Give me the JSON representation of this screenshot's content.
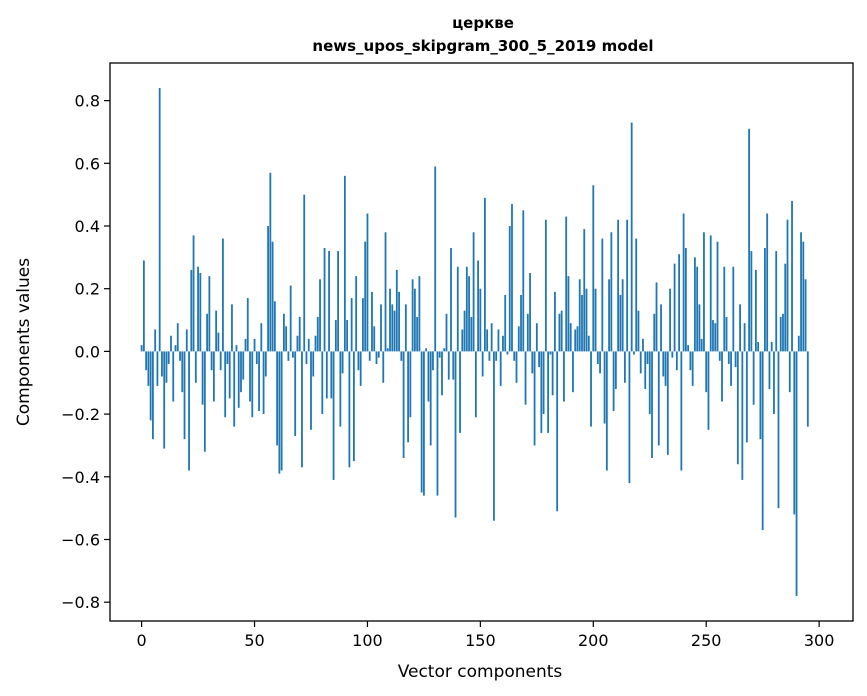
{
  "chart_data": {
    "type": "bar",
    "title": [
      "церкве",
      "news_upos_skipgram_300_5_2019 model"
    ],
    "xlabel": "Vector components",
    "ylabel": "Components values",
    "xlim": [
      -14,
      315
    ],
    "ylim": [
      -0.86,
      0.92
    ],
    "xticks": [
      0,
      50,
      100,
      150,
      200,
      250,
      300
    ],
    "xtick_labels": [
      "0",
      "50",
      "100",
      "150",
      "200",
      "250",
      "300"
    ],
    "yticks": [
      -0.8,
      -0.6,
      -0.4,
      -0.2,
      0.0,
      0.2,
      0.4,
      0.6,
      0.8
    ],
    "ytick_labels": [
      "−0.8",
      "−0.6",
      "−0.4",
      "−0.2",
      "0.0",
      "0.2",
      "0.4",
      "0.6",
      "0.8"
    ],
    "grid": false,
    "color": "#1f77b4",
    "x": "0..299",
    "values": [
      0.02,
      0.29,
      -0.06,
      -0.11,
      -0.22,
      -0.28,
      0.07,
      -0.11,
      0.84,
      -0.08,
      -0.31,
      -0.1,
      -0.04,
      0.05,
      -0.16,
      0.02,
      0.09,
      -0.03,
      -0.13,
      -0.28,
      0.07,
      -0.38,
      0.26,
      0.37,
      -0.1,
      0.27,
      0.25,
      -0.17,
      -0.32,
      0.12,
      0.24,
      -0.06,
      -0.16,
      0.13,
      0.06,
      -0.06,
      0.36,
      -0.21,
      -0.04,
      -0.15,
      0.15,
      -0.24,
      0.02,
      -0.18,
      -0.13,
      -0.09,
      0.04,
      0.17,
      -0.16,
      -0.21,
      0.04,
      -0.04,
      -0.19,
      0.09,
      -0.2,
      -0.08,
      0.4,
      0.57,
      0.35,
      0.16,
      -0.3,
      -0.39,
      -0.38,
      0.12,
      0.08,
      -0.03,
      0.21,
      -0.02,
      -0.27,
      0.05,
      0.11,
      -0.37,
      0.5,
      -0.04,
      0.04,
      -0.25,
      -0.08,
      0.05,
      0.11,
      0.23,
      -0.2,
      0.33,
      -0.15,
      0.32,
      -0.15,
      -0.41,
      0.1,
      0.32,
      -0.24,
      -0.07,
      0.56,
      0.1,
      -0.37,
      0.17,
      -0.35,
      0.24,
      -0.06,
      -0.11,
      0.17,
      0.35,
      0.44,
      -0.03,
      0.19,
      0.08,
      -0.04,
      -0.02,
      0.15,
      -0.1,
      0.38,
      0.01,
      0.2,
      0.15,
      0.13,
      0.26,
      0.19,
      -0.03,
      -0.34,
      0.15,
      -0.29,
      -0.21,
      0.23,
      0.2,
      0.11,
      0.24,
      -0.45,
      -0.46,
      0.01,
      -0.16,
      -0.3,
      -0.06,
      0.59,
      -0.46,
      -0.02,
      -0.14,
      0.01,
      0.12,
      -0.09,
      0.33,
      -0.09,
      -0.53,
      0.27,
      -0.26,
      0.07,
      0.13,
      0.27,
      0.24,
      0.11,
      0.38,
      -0.21,
      0.29,
      0.2,
      -0.08,
      0.49,
      0.07,
      -0.03,
      0.09,
      -0.54,
      -0.03,
      0.07,
      -0.11,
      0.05,
      0.18,
      -0.01,
      0.4,
      0.47,
      -0.03,
      -0.1,
      0.08,
      0.18,
      0.45,
      -0.17,
      0.12,
      0.25,
      -0.07,
      -0.3,
      0.09,
      -0.05,
      -0.26,
      -0.2,
      0.42,
      -0.26,
      -0.01,
      -0.14,
      0.19,
      -0.51,
      0.12,
      0.13,
      -0.16,
      0.43,
      0.24,
      0.09,
      -0.13,
      0.07,
      0.08,
      0.23,
      0.18,
      0.39,
      0.2,
      0.05,
      -0.24,
      0.53,
      0.2,
      -0.04,
      -0.07,
      0.36,
      -0.23,
      -0.38,
      0.23,
      0.38,
      -0.19,
      -0.12,
      0.42,
      0.18,
      0.23,
      -0.1,
      0.42,
      -0.42,
      0.73,
      -0.01,
      0.36,
      0.13,
      -0.07,
      0.04,
      -0.12,
      -0.04,
      -0.2,
      -0.34,
      0.12,
      0.22,
      -0.3,
      0.15,
      -0.08,
      -0.11,
      -0.33,
      0.2,
      -0.02,
      0.28,
      -0.06,
      0.31,
      -0.38,
      0.44,
      0.33,
      0.02,
      -0.06,
      -0.11,
      0.3,
      0.27,
      0.15,
      0.04,
      0.38,
      -0.13,
      -0.25,
      0.37,
      0.1,
      0.09,
      0.35,
      -0.03,
      -0.16,
      0.27,
      0.11,
      -0.04,
      -0.11,
      0.27,
      -0.05,
      -0.36,
      0.15,
      -0.41,
      0.09,
      -0.29,
      0.71,
      0.32,
      -0.17,
      0.26,
      0.03,
      -0.28,
      -0.57,
      0.33,
      0.44,
      -0.12,
      0.03,
      -0.2,
      0.32,
      -0.5,
      0.11,
      0.12,
      0.28,
      0.42,
      -0.13,
      0.48,
      -0.52,
      -0.78,
      0.05,
      0.38,
      0.35,
      0.23,
      -0.24
    ]
  }
}
